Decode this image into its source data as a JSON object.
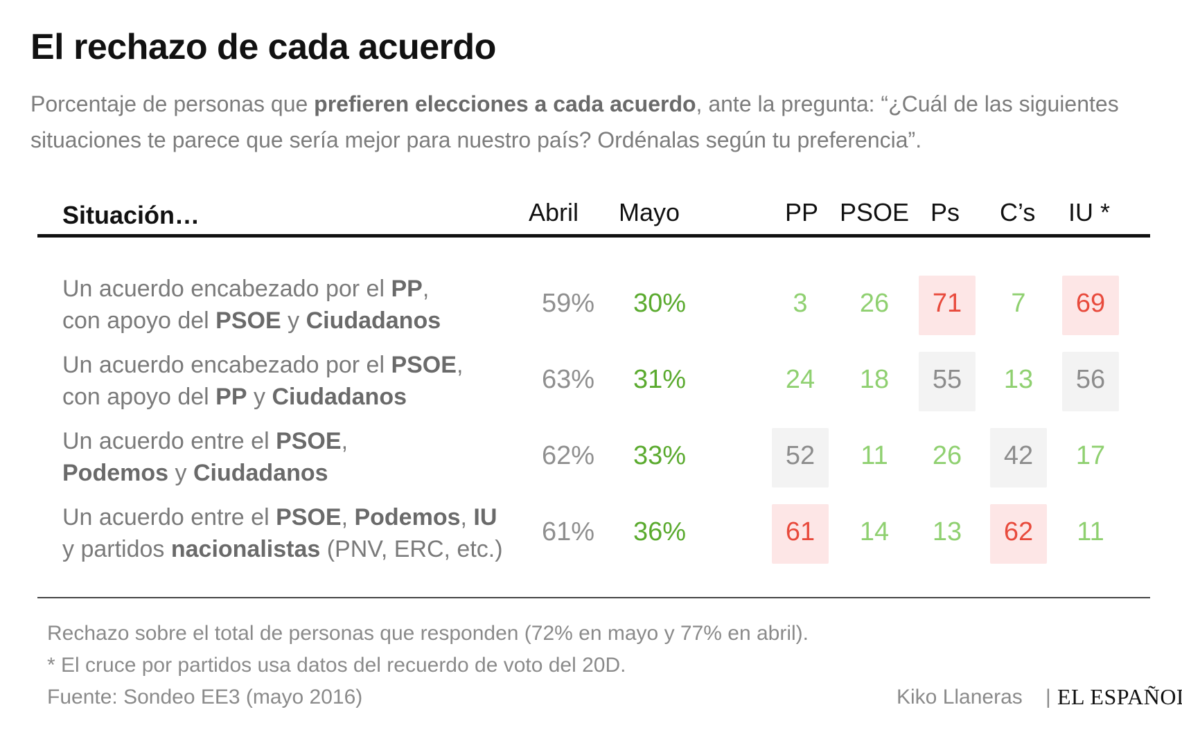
{
  "title": "El rechazo de cada acuerdo",
  "subtitle": {
    "part1": "Porcentaje de personas que ",
    "bold": "prefieren elecciones a cada acuerdo",
    "part2": ", ante la pregunta: “¿Cuál de las siguientes situaciones te parece que sería mejor para nuestro país? Ordénalas según tu preferencia”."
  },
  "columns": {
    "situacion": "Situación…",
    "abril": "Abril",
    "mayo": "Mayo",
    "pp": "PP",
    "psoe": "PSOE",
    "ps": "Ps",
    "cs": "C’s",
    "iu": "IU *"
  },
  "colors": {
    "mayo_text": "#5aaa2e",
    "low_text": "#8fd070",
    "neutral_text": "#8c8c8c",
    "neutral_bg": "#f3f3f3",
    "high_text": "#e84a3c",
    "high_bg": "#fde6e6"
  },
  "chart_data": {
    "type": "table",
    "title": "El rechazo de cada acuerdo",
    "columns": [
      "Abril",
      "Mayo",
      "PP",
      "PSOE",
      "Ps",
      "C’s",
      "IU *"
    ],
    "rows": [
      {
        "label_parts": [
          {
            "t": "Un acuerdo encabezado por el ",
            "b": false
          },
          {
            "t": "PP",
            "b": true
          },
          {
            "t": ",",
            "b": false
          },
          {
            "br": true
          },
          {
            "t": "con apoyo del ",
            "b": false
          },
          {
            "t": "PSOE",
            "b": true
          },
          {
            "t": " y ",
            "b": false
          },
          {
            "t": "Ciudadanos",
            "b": true
          }
        ],
        "abril": "59%",
        "mayo": "30%",
        "parties": [
          {
            "value": 3,
            "level": "low"
          },
          {
            "value": 26,
            "level": "low"
          },
          {
            "value": 71,
            "level": "high"
          },
          {
            "value": 7,
            "level": "low"
          },
          {
            "value": 69,
            "level": "high"
          }
        ]
      },
      {
        "label_parts": [
          {
            "t": "Un acuerdo encabezado por el ",
            "b": false
          },
          {
            "t": "PSOE",
            "b": true
          },
          {
            "t": ",",
            "b": false
          },
          {
            "br": true
          },
          {
            "t": "con apoyo del ",
            "b": false
          },
          {
            "t": "PP",
            "b": true
          },
          {
            "t": " y ",
            "b": false
          },
          {
            "t": "Ciudadanos",
            "b": true
          }
        ],
        "abril": "63%",
        "mayo": "31%",
        "parties": [
          {
            "value": 24,
            "level": "low"
          },
          {
            "value": 18,
            "level": "low"
          },
          {
            "value": 55,
            "level": "mid"
          },
          {
            "value": 13,
            "level": "low"
          },
          {
            "value": 56,
            "level": "mid"
          }
        ]
      },
      {
        "label_parts": [
          {
            "t": "Un acuerdo entre el ",
            "b": false
          },
          {
            "t": "PSOE",
            "b": true
          },
          {
            "t": ",",
            "b": false
          },
          {
            "br": true
          },
          {
            "t": "Podemos",
            "b": true
          },
          {
            "t": " y ",
            "b": false
          },
          {
            "t": "Ciudadanos",
            "b": true
          }
        ],
        "abril": "62%",
        "mayo": "33%",
        "parties": [
          {
            "value": 52,
            "level": "mid"
          },
          {
            "value": 11,
            "level": "low"
          },
          {
            "value": 26,
            "level": "low"
          },
          {
            "value": 42,
            "level": "mid"
          },
          {
            "value": 17,
            "level": "low"
          }
        ]
      },
      {
        "label_parts": [
          {
            "t": "Un acuerdo entre el ",
            "b": false
          },
          {
            "t": "PSOE",
            "b": true
          },
          {
            "t": ", ",
            "b": false
          },
          {
            "t": "Podemos",
            "b": true
          },
          {
            "t": ", ",
            "b": false
          },
          {
            "t": "IU",
            "b": true
          },
          {
            "br": true
          },
          {
            "t": "y partidos ",
            "b": false
          },
          {
            "t": "nacionalistas",
            "b": true
          },
          {
            "t": " (PNV, ERC, etc.)",
            "b": false
          }
        ],
        "abril": "61%",
        "mayo": "36%",
        "parties": [
          {
            "value": 61,
            "level": "high"
          },
          {
            "value": 14,
            "level": "low"
          },
          {
            "value": 13,
            "level": "low"
          },
          {
            "value": 62,
            "level": "high"
          },
          {
            "value": 11,
            "level": "low"
          }
        ]
      }
    ]
  },
  "footer": {
    "note1": "Rechazo sobre el total de personas que responden (72% en mayo y 77% en abril).",
    "note2": "* El cruce por partidos usa datos del recuerdo de voto del 20D.",
    "source": "Fuente: Sondeo EE3 (mayo 2016)",
    "author": "Kiko Llaneras",
    "separator": "|",
    "logo": "EL ESPAÑOL"
  }
}
